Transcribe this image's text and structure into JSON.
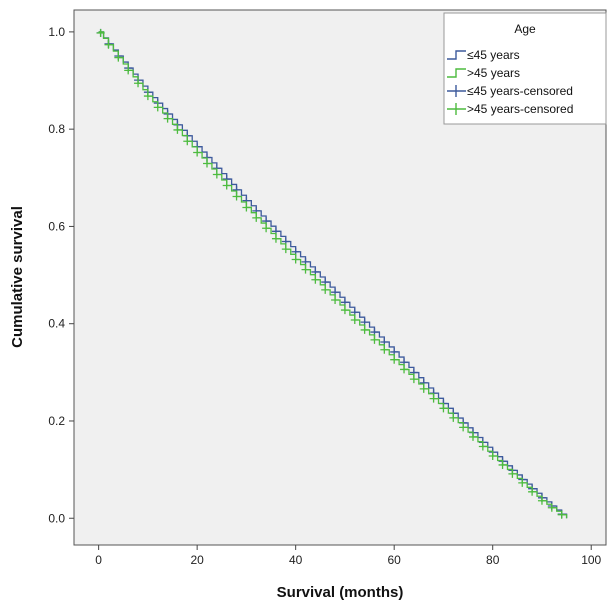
{
  "chart_data": {
    "type": "line",
    "title": "",
    "xlabel": "Survival (months)",
    "ylabel": "Cumulative survival",
    "xlim": [
      -5,
      103
    ],
    "ylim": [
      -0.055,
      1.045
    ],
    "x_ticks": [
      "0",
      "20",
      "40",
      "60",
      "80",
      "100"
    ],
    "y_ticks": [
      "0.0",
      "0.2",
      "0.4",
      "0.6",
      "0.8",
      "1.0"
    ],
    "grid": false,
    "legend": {
      "title": "Age",
      "placement": "top-right",
      "entries": [
        "≤45 years",
        ">45 years",
        "≤45 years-censored",
        ">45 years-censored"
      ]
    },
    "series": [
      {
        "name": "≤45 years",
        "color": "#3d5a9c",
        "marker": "step-with-censor-cross",
        "points": [
          [
            0,
            1.0
          ],
          [
            10,
            0.876
          ],
          [
            20,
            0.764
          ],
          [
            30,
            0.653
          ],
          [
            40,
            0.548
          ],
          [
            50,
            0.444
          ],
          [
            60,
            0.342
          ],
          [
            70,
            0.236
          ],
          [
            80,
            0.136
          ],
          [
            90,
            0.042
          ],
          [
            95,
            0.0
          ]
        ]
      },
      {
        "name": ">45 years",
        "color": "#4dbb3f",
        "marker": "step-with-censor-cross",
        "points": [
          [
            0,
            1.0
          ],
          [
            10,
            0.868
          ],
          [
            20,
            0.752
          ],
          [
            30,
            0.639
          ],
          [
            40,
            0.532
          ],
          [
            50,
            0.428
          ],
          [
            60,
            0.326
          ],
          [
            70,
            0.226
          ],
          [
            80,
            0.128
          ],
          [
            90,
            0.036
          ],
          [
            95,
            0.0
          ]
        ]
      }
    ]
  }
}
